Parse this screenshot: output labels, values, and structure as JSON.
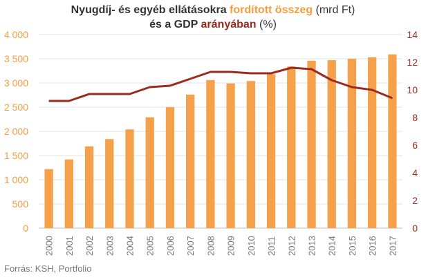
{
  "title": {
    "line1_part1": "Nyugdíj- és egyéb ellátásokra ",
    "line1_highlight": "fordított összeg",
    "line1_part2": " (mrd Ft)",
    "line2_part1": "és a GDP ",
    "line2_highlight": "arányában",
    "line2_part2": " (%)"
  },
  "source": "Forrás: KSH, Portfolio",
  "colors": {
    "bars": "#f5a04a",
    "line": "#9b2a1f",
    "left_axis_text": "#f59d3d",
    "right_axis_text": "#9b2a1f",
    "grid": "#e3e3e3",
    "x_axis_text": "#777777"
  },
  "chart_data": {
    "type": "bar",
    "categories": [
      "2000",
      "2001",
      "2002",
      "2003",
      "2004",
      "2005",
      "2006",
      "2007",
      "2008",
      "2009",
      "2010",
      "2011",
      "2012",
      "2013",
      "2014",
      "2015",
      "2016",
      "2017"
    ],
    "series": [
      {
        "type": "bar",
        "axis": "left",
        "values": [
          1220,
          1420,
          1690,
          1840,
          2040,
          2290,
          2500,
          2760,
          3060,
          2990,
          3040,
          3180,
          3340,
          3460,
          3470,
          3500,
          3530,
          3590
        ]
      },
      {
        "type": "line",
        "axis": "right",
        "values": [
          9.2,
          9.2,
          9.7,
          9.7,
          9.7,
          10.2,
          10.3,
          10.8,
          11.3,
          11.3,
          11.2,
          11.2,
          11.6,
          11.5,
          10.7,
          10.2,
          10.0,
          9.4
        ]
      }
    ],
    "y_left": {
      "ylim": [
        0,
        4000
      ],
      "ticks": [
        "0",
        "500",
        "1 000",
        "1 500",
        "2 000",
        "2 500",
        "3 000",
        "3 500",
        "4 000"
      ]
    },
    "y_right": {
      "ylim": [
        0,
        14
      ],
      "ticks": [
        "0",
        "2",
        "4",
        "6",
        "8",
        "10",
        "12",
        "14"
      ]
    },
    "grid": true,
    "legend": "none"
  }
}
